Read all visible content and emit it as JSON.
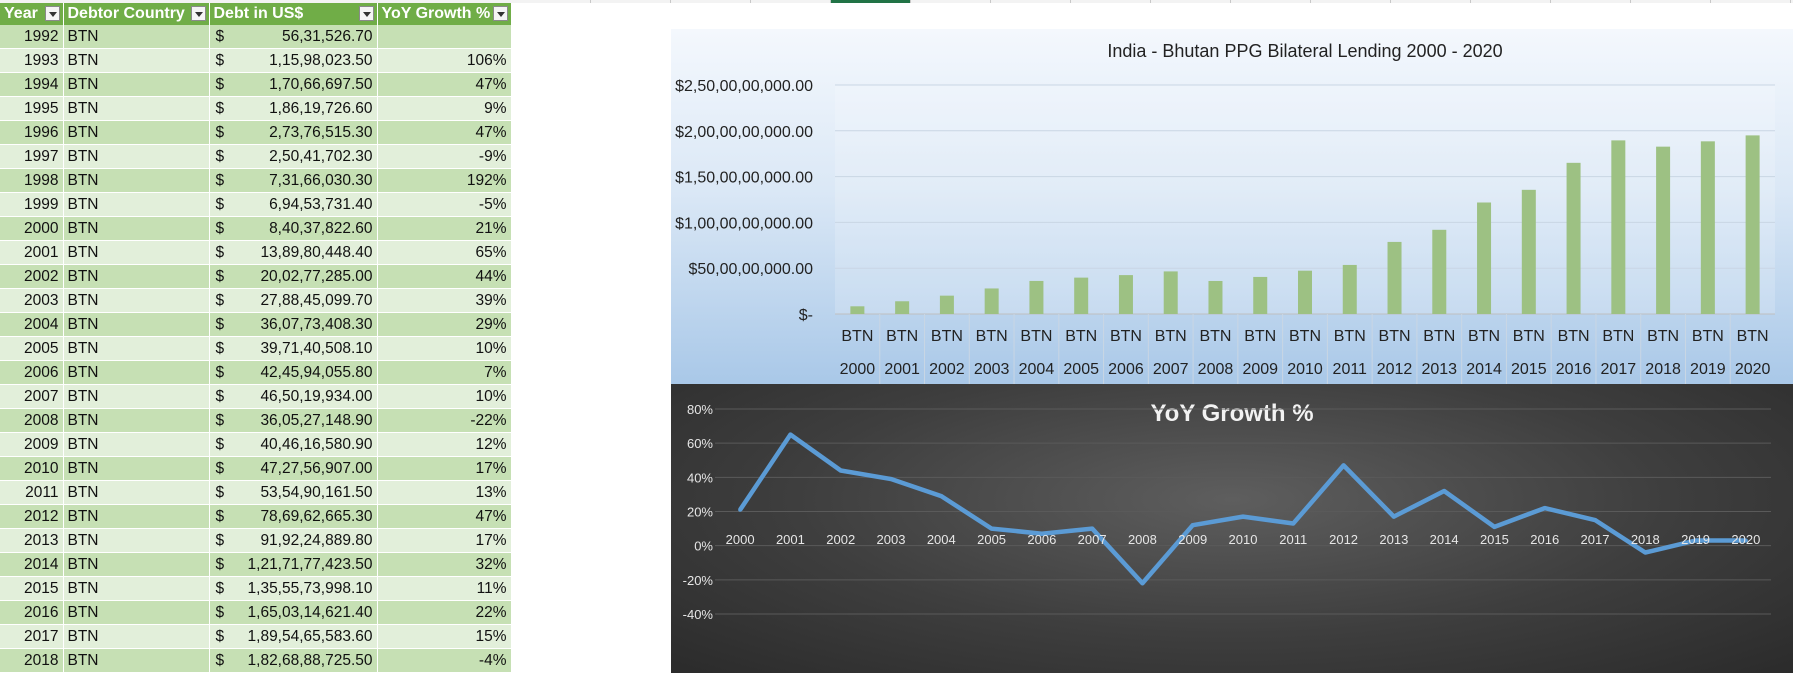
{
  "sheet": {
    "headers": [
      "Year",
      "Debtor Country",
      "Debt in US$",
      "YoY Growth %"
    ],
    "currency_symbol": "$",
    "rows": [
      {
        "year": "1992",
        "country": "BTN",
        "debt": "56,31,526.70",
        "growth": ""
      },
      {
        "year": "1993",
        "country": "BTN",
        "debt": "1,15,98,023.50",
        "growth": "106%"
      },
      {
        "year": "1994",
        "country": "BTN",
        "debt": "1,70,66,697.50",
        "growth": "47%"
      },
      {
        "year": "1995",
        "country": "BTN",
        "debt": "1,86,19,726.60",
        "growth": "9%"
      },
      {
        "year": "1996",
        "country": "BTN",
        "debt": "2,73,76,515.30",
        "growth": "47%"
      },
      {
        "year": "1997",
        "country": "BTN",
        "debt": "2,50,41,702.30",
        "growth": "-9%"
      },
      {
        "year": "1998",
        "country": "BTN",
        "debt": "7,31,66,030.30",
        "growth": "192%"
      },
      {
        "year": "1999",
        "country": "BTN",
        "debt": "6,94,53,731.40",
        "growth": "-5%"
      },
      {
        "year": "2000",
        "country": "BTN",
        "debt": "8,40,37,822.60",
        "growth": "21%"
      },
      {
        "year": "2001",
        "country": "BTN",
        "debt": "13,89,80,448.40",
        "growth": "65%"
      },
      {
        "year": "2002",
        "country": "BTN",
        "debt": "20,02,77,285.00",
        "growth": "44%"
      },
      {
        "year": "2003",
        "country": "BTN",
        "debt": "27,88,45,099.70",
        "growth": "39%"
      },
      {
        "year": "2004",
        "country": "BTN",
        "debt": "36,07,73,408.30",
        "growth": "29%"
      },
      {
        "year": "2005",
        "country": "BTN",
        "debt": "39,71,40,508.10",
        "growth": "10%"
      },
      {
        "year": "2006",
        "country": "BTN",
        "debt": "42,45,94,055.80",
        "growth": "7%"
      },
      {
        "year": "2007",
        "country": "BTN",
        "debt": "46,50,19,934.00",
        "growth": "10%"
      },
      {
        "year": "2008",
        "country": "BTN",
        "debt": "36,05,27,148.90",
        "growth": "-22%"
      },
      {
        "year": "2009",
        "country": "BTN",
        "debt": "40,46,16,580.90",
        "growth": "12%"
      },
      {
        "year": "2010",
        "country": "BTN",
        "debt": "47,27,56,907.00",
        "growth": "17%"
      },
      {
        "year": "2011",
        "country": "BTN",
        "debt": "53,54,90,161.50",
        "growth": "13%"
      },
      {
        "year": "2012",
        "country": "BTN",
        "debt": "78,69,62,665.30",
        "growth": "47%"
      },
      {
        "year": "2013",
        "country": "BTN",
        "debt": "91,92,24,889.80",
        "growth": "17%"
      },
      {
        "year": "2014",
        "country": "BTN",
        "debt": "1,21,71,77,423.50",
        "growth": "32%"
      },
      {
        "year": "2015",
        "country": "BTN",
        "debt": "1,35,55,73,998.10",
        "growth": "11%"
      },
      {
        "year": "2016",
        "country": "BTN",
        "debt": "1,65,03,14,621.40",
        "growth": "22%"
      },
      {
        "year": "2017",
        "country": "BTN",
        "debt": "1,89,54,65,583.60",
        "growth": "15%"
      },
      {
        "year": "2018",
        "country": "BTN",
        "debt": "1,82,68,88,725.50",
        "growth": "-4%"
      }
    ]
  },
  "colors": {
    "header_green": "#70ad47",
    "row_green_dark": "#c6e0b4",
    "row_green_light": "#e2efda",
    "bar_green": "#9dc183",
    "line_blue": "#5b9bd5",
    "selection_green": "#217346"
  },
  "chart_data": [
    {
      "type": "bar",
      "title": "India - Bhutan PPG Bilateral Lending 2000 - 2020",
      "categories": [
        "2000",
        "2001",
        "2002",
        "2003",
        "2004",
        "2005",
        "2006",
        "2007",
        "2008",
        "2009",
        "2010",
        "2011",
        "2012",
        "2013",
        "2014",
        "2015",
        "2016",
        "2017",
        "2018",
        "2019",
        "2020"
      ],
      "category_group": "BTN",
      "values": [
        84037822.6,
        138980448.4,
        200277285.0,
        278845099.7,
        360773408.3,
        397140508.1,
        424594055.8,
        465019934.0,
        360527148.9,
        404616580.9,
        472756907.0,
        535490161.5,
        786962665.3,
        919224889.8,
        1217177423.5,
        1355573998.1,
        1650314621.4,
        1895465583.6,
        1826888725.5,
        1885000000,
        1950000000
      ],
      "ylim": [
        0,
        2500000000
      ],
      "y_ticks": [
        0,
        500000000,
        1000000000,
        1500000000,
        2000000000,
        2500000000
      ],
      "y_tick_labels": [
        "$-",
        "$50,00,00,000.00",
        "$1,00,00,00,000.00",
        "$1,50,00,00,000.00",
        "$2,00,00,00,000.00",
        "$2,50,00,00,000.00"
      ],
      "grid": true,
      "legend": "none"
    },
    {
      "type": "line",
      "title": "YoY Growth %",
      "x": [
        "2000",
        "2001",
        "2002",
        "2003",
        "2004",
        "2005",
        "2006",
        "2007",
        "2008",
        "2009",
        "2010",
        "2011",
        "2012",
        "2013",
        "2014",
        "2015",
        "2016",
        "2017",
        "2018",
        "2019",
        "2020"
      ],
      "values": [
        21,
        65,
        44,
        39,
        29,
        10,
        7,
        10,
        -22,
        12,
        17,
        13,
        47,
        17,
        32,
        11,
        22,
        15,
        -4,
        3,
        3
      ],
      "ylim": [
        -40,
        80
      ],
      "y_ticks": [
        -40,
        -20,
        0,
        20,
        40,
        60,
        80
      ],
      "y_tick_labels": [
        "-40%",
        "-20%",
        "0%",
        "20%",
        "40%",
        "60%",
        "80%"
      ],
      "grid": true,
      "legend": "none"
    }
  ]
}
